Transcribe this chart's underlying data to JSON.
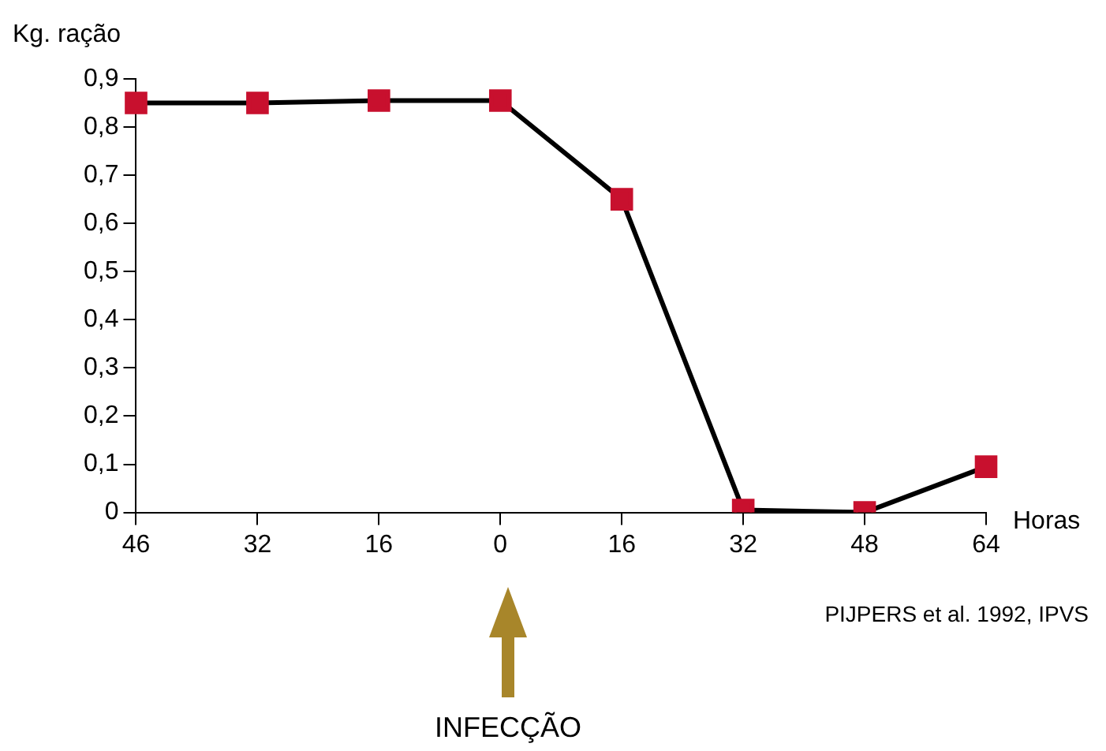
{
  "chart_data": {
    "type": "line",
    "ylabel": "Kg. ração",
    "xlabel": "Horas",
    "categories": [
      "46",
      "32",
      "16",
      "0",
      "16",
      "32",
      "48",
      "64"
    ],
    "series": [
      {
        "color": "#000000",
        "colors": [
          "#c8102e",
          "#c8102e",
          "#c8102e",
          "#c8102e",
          "#c8102e",
          "#c8102e",
          "#c8102e",
          "#c8102e"
        ],
        "values": [
          0.85,
          0.85,
          0.855,
          0.855,
          0.65,
          0.005,
          0,
          0.095
        ]
      }
    ],
    "ylim": [
      0,
      0.9
    ],
    "yticks": [
      {
        "value": 0,
        "label": "0"
      },
      {
        "value": 0.1,
        "label": "0,1"
      },
      {
        "value": 0.2,
        "label": "0,2"
      },
      {
        "value": 0.3,
        "label": "0,3"
      },
      {
        "value": 0.4,
        "label": "0,4"
      },
      {
        "value": 0.5,
        "label": "0,5"
      },
      {
        "value": 0.6,
        "label": "0,6"
      },
      {
        "value": 0.7,
        "label": "0,7"
      },
      {
        "value": 0.8,
        "label": "0,8"
      },
      {
        "value": 0.9,
        "label": "0,9"
      }
    ],
    "grid": false,
    "legend": false,
    "marker": "square",
    "line_style": "solid",
    "annotations": [
      "PIJPERS et al. 1992, IPVS",
      "INFECÇÃO"
    ]
  }
}
